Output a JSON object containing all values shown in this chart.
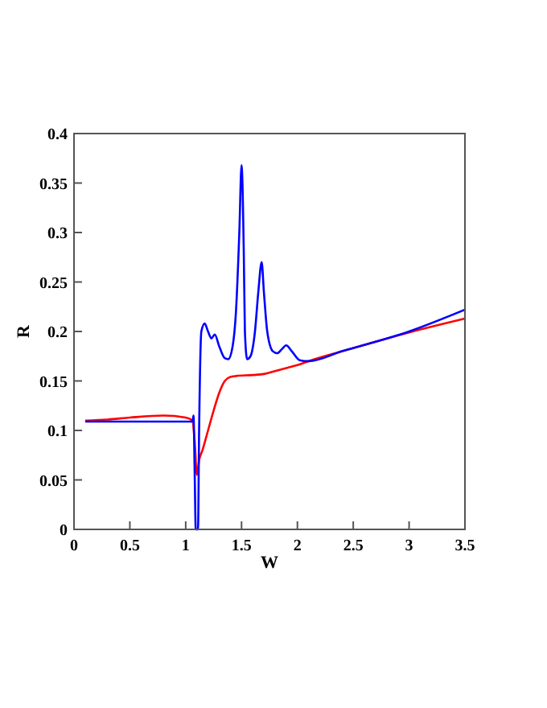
{
  "chart_data": {
    "type": "line",
    "xlabel": "W",
    "ylabel": "R",
    "xlim": [
      0,
      3.5
    ],
    "ylim": [
      0,
      0.4
    ],
    "xticks": [
      0,
      0.5,
      1,
      1.5,
      2,
      2.5,
      3,
      3.5
    ],
    "yticks": [
      0,
      0.05,
      0.1,
      0.15,
      0.2,
      0.25,
      0.3,
      0.35,
      0.4
    ],
    "grid": false,
    "marker": "none",
    "line_style": "solid",
    "series": [
      {
        "color": "#ff0000",
        "x": [
          0.1,
          0.3,
          0.5,
          0.8,
          1.0,
          1.06,
          1.08,
          1.1,
          1.12,
          1.15,
          1.2,
          1.25,
          1.3,
          1.35,
          1.4,
          1.45,
          1.6,
          1.7,
          1.8,
          1.9,
          2.0,
          2.1,
          2.4,
          3.0,
          3.5
        ],
        "values": [
          0.11,
          0.111,
          0.113,
          0.115,
          0.113,
          0.11,
          0.09,
          0.055,
          0.07,
          0.08,
          0.1,
          0.12,
          0.138,
          0.15,
          0.154,
          0.155,
          0.156,
          0.157,
          0.16,
          0.163,
          0.166,
          0.17,
          0.18,
          0.199,
          0.213
        ]
      },
      {
        "color": "#0000ff",
        "x": [
          0.1,
          0.5,
          1.0,
          1.06,
          1.07,
          1.08,
          1.09,
          1.11,
          1.12,
          1.14,
          1.17,
          1.2,
          1.23,
          1.26,
          1.3,
          1.35,
          1.38,
          1.42,
          1.45,
          1.48,
          1.5,
          1.52,
          1.53,
          1.55,
          1.58,
          1.62,
          1.65,
          1.68,
          1.7,
          1.73,
          1.78,
          1.82,
          1.86,
          1.9,
          1.95,
          2.02,
          2.1,
          2.4,
          3.0,
          3.5
        ],
        "values": [
          0.109,
          0.109,
          0.109,
          0.109,
          0.115,
          0.06,
          0,
          0,
          0.1,
          0.2,
          0.208,
          0.2,
          0.193,
          0.197,
          0.185,
          0.173,
          0.172,
          0.185,
          0.22,
          0.3,
          0.368,
          0.28,
          0.2,
          0.172,
          0.175,
          0.2,
          0.24,
          0.27,
          0.24,
          0.2,
          0.18,
          0.178,
          0.182,
          0.186,
          0.18,
          0.171,
          0.17,
          0.18,
          0.2,
          0.222
        ]
      }
    ]
  }
}
